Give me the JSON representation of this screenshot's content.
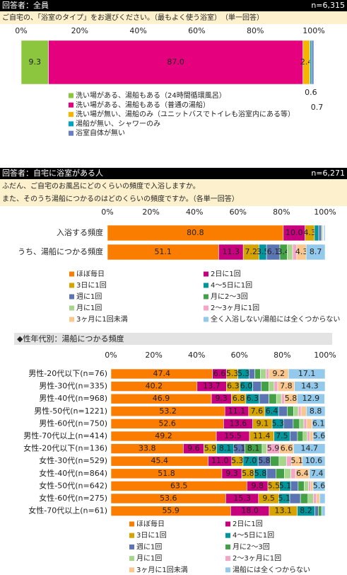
{
  "chart_data": [
    {
      "type": "bar",
      "stacked": true,
      "orientation": "horizontal",
      "respondent": "回答者：全員",
      "n": "n=6,315",
      "question": [
        "ご自宅の、「浴室のタイプ」をお選びください。（最もよく使う浴室）　（単一回答）"
      ],
      "xlim": [
        0,
        100
      ],
      "xticks": [
        {
          "value": 0,
          "label": "0%"
        },
        {
          "value": 20,
          "label": "20%"
        },
        {
          "value": 40,
          "label": "40%"
        },
        {
          "value": 60,
          "label": "60%"
        },
        {
          "value": 80,
          "label": "80%"
        },
        {
          "value": 100,
          "label": "100%"
        }
      ],
      "categories": [
        null
      ],
      "series": [
        {
          "name": "洗い場がある、湯船もある（24時間循環風呂）",
          "color": "#8cc63f",
          "values": [
            9.3
          ],
          "value_labels": [
            "9.3"
          ]
        },
        {
          "name": "洗い場がある、湯船もある（普通の湯船）",
          "color": "#e5007e",
          "values": [
            87.0
          ],
          "value_labels": [
            "87.0"
          ]
        },
        {
          "name": "洗い場が無い、湯船のみ（ユニットバスでトイレも浴室内にある等）",
          "color": "#f7b500",
          "values": [
            2.4
          ],
          "value_labels": [
            "2.4"
          ]
        },
        {
          "name": "湯船が無い、シャワーのみ",
          "color": "#00a3c4",
          "values": [
            0.6
          ],
          "value_labels": [
            "0.6"
          ]
        },
        {
          "name": "浴室自体が無い",
          "color": "#6a7fc1",
          "values": [
            0.7
          ],
          "value_labels": [
            "0.7"
          ]
        }
      ]
    },
    {
      "type": "bar",
      "stacked": true,
      "orientation": "horizontal",
      "respondent": "回答者：自宅に浴室がある人",
      "n": "n=6,271",
      "question": [
        "ふだん、ご自宅のお風呂にどのくらいの頻度で入浴しますか。",
        "また、そのうち湯船につかるのはどのくらいの頻度ですか。（各単一回答）"
      ],
      "xlim": [
        0,
        100
      ],
      "xticks": [
        {
          "value": 0,
          "label": "0%"
        },
        {
          "value": 20,
          "label": "20%"
        },
        {
          "value": 40,
          "label": "40%"
        },
        {
          "value": 60,
          "label": "60%"
        },
        {
          "value": 80,
          "label": "80%"
        },
        {
          "value": 100,
          "label": "100%"
        }
      ],
      "categories": [
        "入浴する頻度",
        "うち、湯船につかる頻度"
      ],
      "series": [
        {
          "name": "ほぼ毎日",
          "color": "#fb7d00",
          "values": [
            80.8,
            51.1
          ],
          "value_labels": [
            "80.8",
            "51.1"
          ]
        },
        {
          "name": "2日に1回",
          "color": "#c7007d",
          "values": [
            10.0,
            11.3
          ],
          "value_labels": [
            "10.0",
            "11.3"
          ]
        },
        {
          "name": "3日に1回",
          "color": "#d6a300",
          "values": [
            4.3,
            7.2
          ],
          "value_labels": [
            "4.3",
            "7.2"
          ]
        },
        {
          "name": "4～5日に1回",
          "color": "#00969c",
          "values": [
            2.0,
            3.5
          ],
          "value_labels": [
            null,
            "3.5"
          ]
        },
        {
          "name": "週に1回",
          "color": "#5b74b2",
          "values": [
            1.2,
            6.1
          ],
          "value_labels": [
            null,
            "6.1"
          ]
        },
        {
          "name": "月に2～3回",
          "color": "#43a047",
          "values": [
            0.4,
            3.4
          ],
          "value_labels": [
            null,
            "3.4"
          ]
        },
        {
          "name": "月に1回",
          "color": "#a5d68b",
          "values": [
            0.3,
            2.5
          ],
          "value_labels": [
            null,
            null
          ]
        },
        {
          "name": "2～3ヶ月に1回",
          "color": "#f4a6c6",
          "values": [
            0.2,
            1.9
          ],
          "value_labels": [
            null,
            null
          ]
        },
        {
          "name": "3ヶ月に1回未満",
          "color": "#fac78f",
          "values": [
            0.2,
            4.3
          ],
          "value_labels": [
            null,
            "4.3"
          ]
        },
        {
          "name": "全く入浴しない/湯船には全くつからない",
          "color": "#93c9ea",
          "values": [
            0.6,
            8.7
          ],
          "value_labels": [
            null,
            "8.7"
          ]
        }
      ]
    },
    {
      "type": "bar",
      "stacked": true,
      "orientation": "horizontal",
      "title": "◆性年代別：湯船につかる頻度",
      "xlim": [
        0,
        100
      ],
      "xticks": [
        {
          "value": 0,
          "label": "0%"
        },
        {
          "value": 20,
          "label": "20%"
        },
        {
          "value": 40,
          "label": "40%"
        },
        {
          "value": 60,
          "label": "60%"
        },
        {
          "value": 80,
          "label": "80%"
        },
        {
          "value": 100,
          "label": "100%"
        }
      ],
      "categories": [
        "男性-20代以下(n=76)",
        "男性-30代(n=335)",
        "男性-40代(n=968)",
        "男性-50代(n=1221)",
        "男性-60代(n=750)",
        "男性-70代以上(n=414)",
        "女性-20代以下(n=136)",
        "女性-30代(n=529)",
        "女性-40代(n=864)",
        "女性-50代(n=642)",
        "女性-60代(n=275)",
        "女性-70代以上(n=61)"
      ],
      "series": [
        {
          "name": "ほぼ毎日",
          "color": "#fb7d00",
          "values": [
            47.4,
            40.2,
            46.9,
            53.2,
            52.6,
            49.2,
            33.8,
            45.4,
            51.8,
            63.5,
            53.6,
            55.9
          ],
          "value_labels": [
            "47.4",
            "40.2",
            "46.9",
            "53.2",
            "52.6",
            "49.2",
            "33.8",
            "45.4",
            "51.8",
            "63.5",
            "53.6",
            "55.9"
          ]
        },
        {
          "name": "2日に1回",
          "color": "#c7007d",
          "values": [
            6.6,
            13.7,
            9.3,
            11.1,
            13.6,
            15.5,
            9.6,
            11.0,
            9.3,
            9.8,
            15.3,
            18.0
          ],
          "value_labels": [
            "6.6",
            "13.7",
            "9.3",
            "11.1",
            "13.6",
            "15.5",
            "9.6",
            "11.0",
            "9.3",
            "9.8",
            "15.3",
            "18.0"
          ]
        },
        {
          "name": "3日に1回",
          "color": "#d6a300",
          "values": [
            5.3,
            6.3,
            6.8,
            7.6,
            9.1,
            11.4,
            5.9,
            5.3,
            5.8,
            5.5,
            9.5,
            13.1
          ],
          "value_labels": [
            "5.3",
            "6.3",
            "6.8",
            "7.6",
            "9.1",
            "11.4",
            "5.9",
            "5.3",
            "5.8",
            "5.5",
            "9.5",
            "13.1"
          ]
        },
        {
          "name": "4～5日に1回",
          "color": "#00969c",
          "values": [
            5.3,
            6.0,
            6.3,
            6.4,
            5.3,
            7.5,
            8.1,
            7.0,
            5.8,
            5.1,
            5.1,
            8.2
          ],
          "value_labels": [
            "5.3",
            "6.0",
            "6.3",
            "6.4",
            "5.3",
            "7.5",
            "8.1",
            "7.0",
            "5.8",
            "5.1",
            "5.1",
            "8.2"
          ]
        },
        {
          "name": "週に1回",
          "color": "#5b74b2",
          "values": [
            2.6,
            4.0,
            4.5,
            4.0,
            4.5,
            3.5,
            5.1,
            5.8,
            4.3,
            3.5,
            5.0,
            1.6
          ],
          "value_labels": [
            null,
            null,
            null,
            null,
            null,
            null,
            "5.1",
            "5.8",
            null,
            null,
            null,
            null
          ]
        },
        {
          "name": "月に2～3回",
          "color": "#43a047",
          "values": [
            2.6,
            3.5,
            3.5,
            3.0,
            3.0,
            2.6,
            8.1,
            4.0,
            4.0,
            2.8,
            3.5,
            1.6
          ],
          "value_labels": [
            null,
            null,
            null,
            null,
            null,
            null,
            "8.1",
            null,
            null,
            null,
            null,
            null
          ]
        },
        {
          "name": "月に1回",
          "color": "#a5d68b",
          "values": [
            2.6,
            2.5,
            2.3,
            2.2,
            2.0,
            2.0,
            2.2,
            3.5,
            3.0,
            2.0,
            2.5,
            0
          ],
          "value_labels": [
            null,
            null,
            null,
            null,
            null,
            null,
            null,
            null,
            null,
            null,
            null,
            null
          ]
        },
        {
          "name": "2～3ヶ月に1回",
          "color": "#f4a6c6",
          "values": [
            1.3,
            1.7,
            1.5,
            1.3,
            1.3,
            1.2,
            5.9,
            2.3,
            2.2,
            1.0,
            1.5,
            0
          ],
          "value_labels": [
            null,
            null,
            null,
            null,
            null,
            null,
            "5.9",
            null,
            null,
            null,
            null,
            null
          ]
        },
        {
          "name": "3ヶ月に1回未満",
          "color": "#fac78f",
          "values": [
            9.2,
            7.8,
            5.8,
            2.4,
            2.5,
            1.5,
            6.6,
            5.1,
            6.4,
            1.2,
            1.5,
            0
          ],
          "value_labels": [
            "9.2",
            "7.8",
            "5.8",
            null,
            null,
            null,
            "6.6",
            "5.1",
            "6.4",
            null,
            null,
            null
          ]
        },
        {
          "name": "湯船には全くつからない",
          "color": "#93c9ea",
          "values": [
            17.1,
            14.3,
            12.9,
            8.8,
            6.1,
            5.6,
            14.7,
            10.6,
            7.4,
            5.6,
            2.5,
            1.6
          ],
          "value_labels": [
            "17.1",
            "14.3",
            "12.9",
            "8.8",
            "6.1",
            "5.6",
            "14.7",
            "10.6",
            "7.4",
            "5.6",
            null,
            null
          ]
        }
      ]
    }
  ]
}
